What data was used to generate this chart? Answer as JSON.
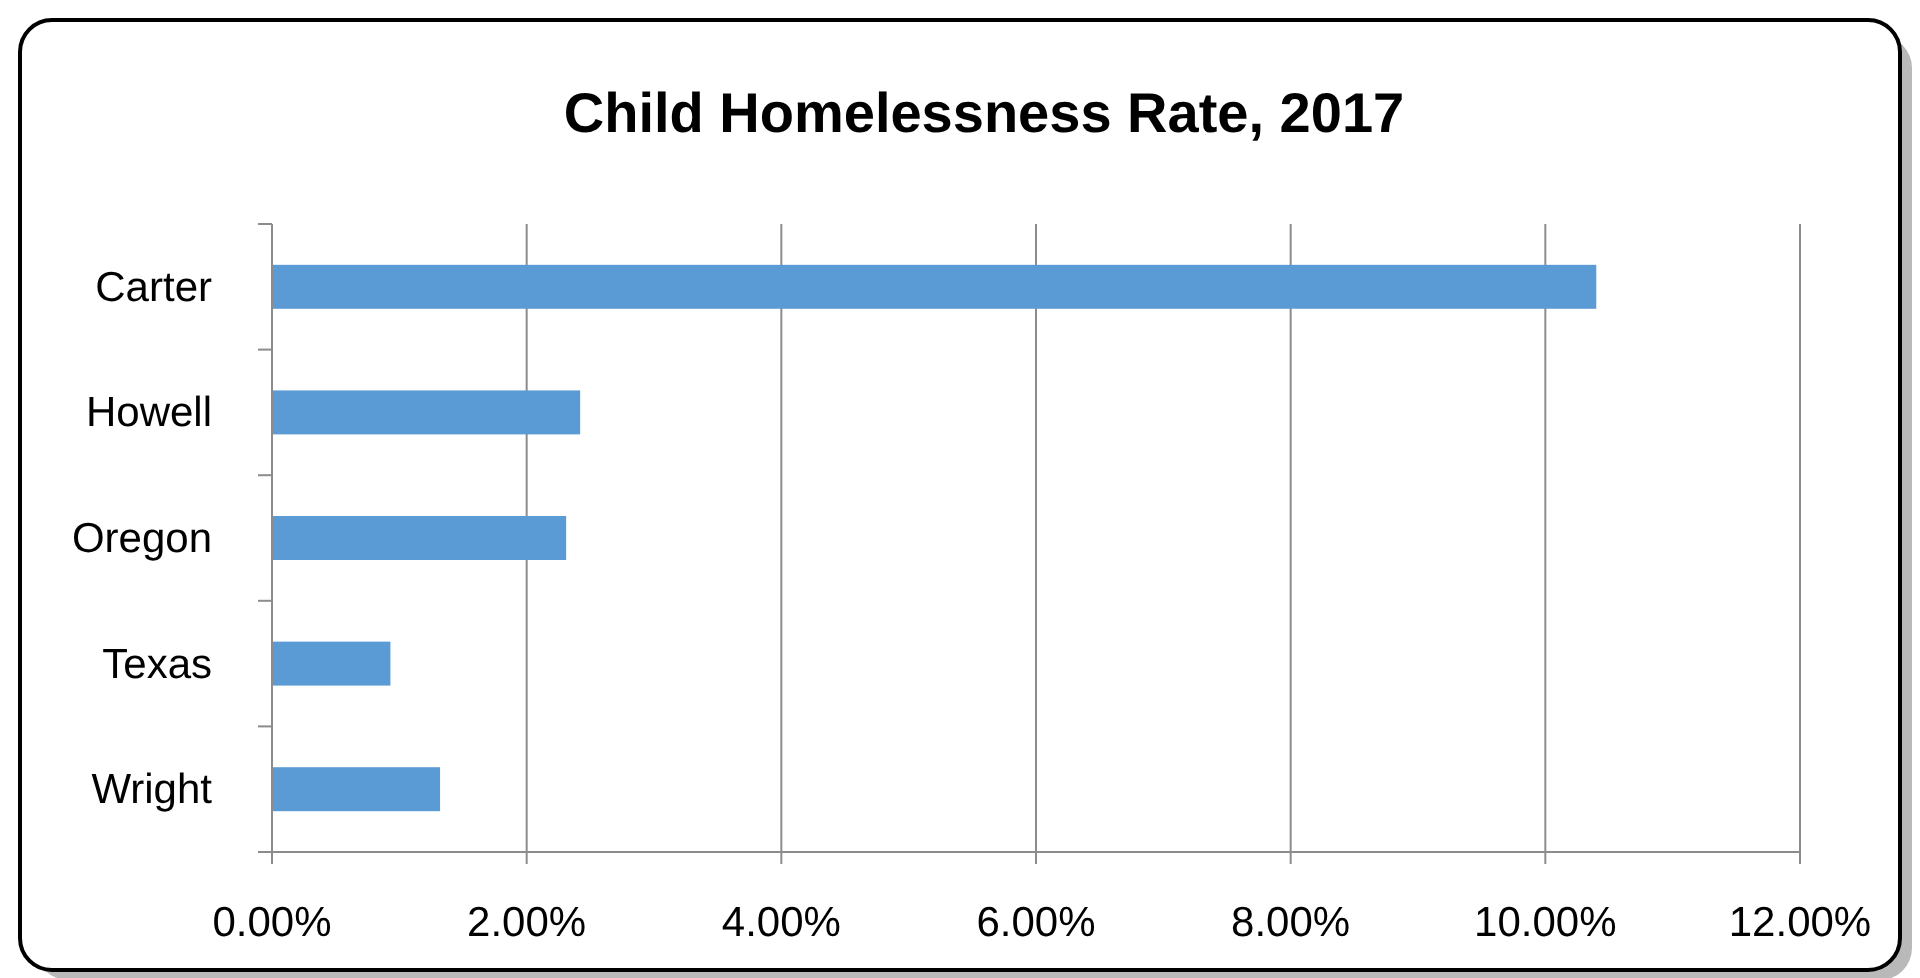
{
  "chart_data": {
    "type": "bar",
    "orientation": "horizontal",
    "title": "Child Homelessness Rate, 2017",
    "categories": [
      "Carter",
      "Howell",
      "Oregon",
      "Texas",
      "Wright"
    ],
    "values": [
      10.4,
      2.42,
      2.31,
      0.93,
      1.32
    ],
    "color": "#5b9bd5",
    "xlim": [
      0,
      12
    ],
    "xticks": [
      {
        "value": 0,
        "label": "0.00%"
      },
      {
        "value": 2,
        "label": "2.00%"
      },
      {
        "value": 4,
        "label": "4.00%"
      },
      {
        "value": 6,
        "label": "6.00%"
      },
      {
        "value": 8,
        "label": "8.00%"
      },
      {
        "value": 10,
        "label": "10.00%"
      },
      {
        "value": 12,
        "label": "12.00%"
      }
    ],
    "grid": "x"
  }
}
